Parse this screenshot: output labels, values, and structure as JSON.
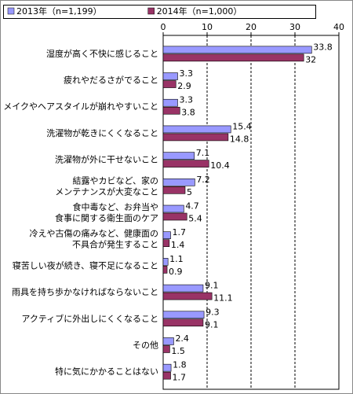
{
  "chart_data": {
    "type": "bar",
    "orientation": "horizontal",
    "categories": [
      "湿度が高く不快に感じること",
      "疲れやだるさがでること",
      "メイクやヘアスタイルが崩れやすいこと",
      "洗濯物が乾きにくくなること",
      "洗濯物が外に干せないこと",
      "結露やカビなど、家の\nメンテナンスが大変なこと",
      "食中毒など、お弁当や\n食事に関する衛生面のケア",
      "冷えや古傷の痛みなど、健康面の\n不具合が発生すること",
      "寝苦しい夜が続き、寝不足になること",
      "雨具を持ち歩かなければならないこと",
      "アクティブに外出しにくくなること",
      "その他",
      "特に気にかかることはない"
    ],
    "series": [
      {
        "name": "2013年（n=1,199）",
        "color": "#9999ff",
        "values": [
          33.8,
          3.3,
          3.3,
          15.4,
          7.1,
          7.2,
          4.7,
          1.7,
          1.1,
          9.1,
          9.3,
          2.4,
          1.8
        ]
      },
      {
        "name": "2014年（n=1,000）",
        "color": "#993366",
        "values": [
          32.0,
          2.9,
          3.8,
          14.8,
          10.4,
          5.0,
          5.4,
          1.4,
          0.9,
          11.1,
          9.1,
          1.5,
          1.7
        ]
      }
    ],
    "xlim": [
      0,
      40
    ],
    "xticks": [
      0,
      10,
      20,
      30,
      40
    ],
    "grid": true
  }
}
